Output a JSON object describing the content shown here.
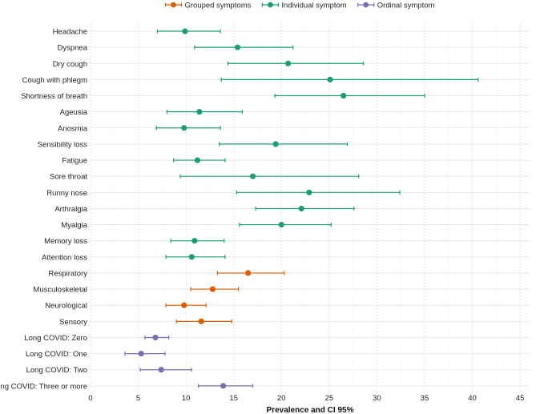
{
  "chart_data": {
    "type": "forest",
    "xlabel": "Prevalence and CI 95%",
    "xlim": [
      0,
      46
    ],
    "xticks": [
      0,
      5,
      10,
      15,
      20,
      25,
      30,
      35,
      40,
      45
    ],
    "grid": true,
    "legend_position": "top-center",
    "groups": [
      {
        "key": "grouped",
        "name": "Grouped symptoms",
        "color": "#D95F02"
      },
      {
        "key": "individual",
        "name": "Individual symptom",
        "color": "#1B9E77"
      },
      {
        "key": "ordinal",
        "name": "Ordinal symptom",
        "color": "#7570B3"
      }
    ],
    "rows": [
      {
        "label": "Headache",
        "group": "individual",
        "value": 9.9,
        "low": 7.0,
        "high": 13.6
      },
      {
        "label": "Dyspnea",
        "group": "individual",
        "value": 15.4,
        "low": 10.9,
        "high": 21.2
      },
      {
        "label": "Dry cough",
        "group": "individual",
        "value": 20.7,
        "low": 14.4,
        "high": 28.6
      },
      {
        "label": "Cough with phlegm",
        "group": "individual",
        "value": 25.1,
        "low": 13.7,
        "high": 40.6
      },
      {
        "label": "Shortness of breath",
        "group": "individual",
        "value": 26.5,
        "low": 19.3,
        "high": 35.0
      },
      {
        "label": "Ageusia",
        "group": "individual",
        "value": 11.4,
        "low": 8.0,
        "high": 15.9
      },
      {
        "label": "Anosmia",
        "group": "individual",
        "value": 9.8,
        "low": 6.9,
        "high": 13.6
      },
      {
        "label": "Sensibility loss",
        "group": "individual",
        "value": 19.4,
        "low": 13.5,
        "high": 26.9
      },
      {
        "label": "Fatigue",
        "group": "individual",
        "value": 11.2,
        "low": 8.7,
        "high": 14.1
      },
      {
        "label": "Sore throat",
        "group": "individual",
        "value": 17.0,
        "low": 9.4,
        "high": 28.1
      },
      {
        "label": "Runny nose",
        "group": "individual",
        "value": 22.9,
        "low": 15.3,
        "high": 32.4
      },
      {
        "label": "Arthralgia",
        "group": "individual",
        "value": 22.1,
        "low": 17.3,
        "high": 27.6
      },
      {
        "label": "Myalgia",
        "group": "individual",
        "value": 20.0,
        "low": 15.6,
        "high": 25.2
      },
      {
        "label": "Memory loss",
        "group": "individual",
        "value": 10.9,
        "low": 8.4,
        "high": 14.0
      },
      {
        "label": "Attention loss",
        "group": "individual",
        "value": 10.6,
        "low": 7.9,
        "high": 14.1
      },
      {
        "label": "Respiratory",
        "group": "grouped",
        "value": 16.5,
        "low": 13.3,
        "high": 20.3
      },
      {
        "label": "Musculoskeletal",
        "group": "grouped",
        "value": 12.8,
        "low": 10.5,
        "high": 15.5
      },
      {
        "label": "Neurological",
        "group": "grouped",
        "value": 9.8,
        "low": 7.9,
        "high": 12.1
      },
      {
        "label": "Sensory",
        "group": "grouped",
        "value": 11.6,
        "low": 9.0,
        "high": 14.8
      },
      {
        "label": "Long COVID: Zero",
        "group": "ordinal",
        "value": 6.8,
        "low": 5.7,
        "high": 8.2
      },
      {
        "label": "Long COVID: One",
        "group": "ordinal",
        "value": 5.3,
        "low": 3.6,
        "high": 7.8
      },
      {
        "label": "Long COVID: Two",
        "group": "ordinal",
        "value": 7.4,
        "low": 5.2,
        "high": 10.6
      },
      {
        "label": "Long COVID: Three or more",
        "group": "ordinal",
        "value": 13.9,
        "low": 11.3,
        "high": 17.0
      }
    ]
  }
}
